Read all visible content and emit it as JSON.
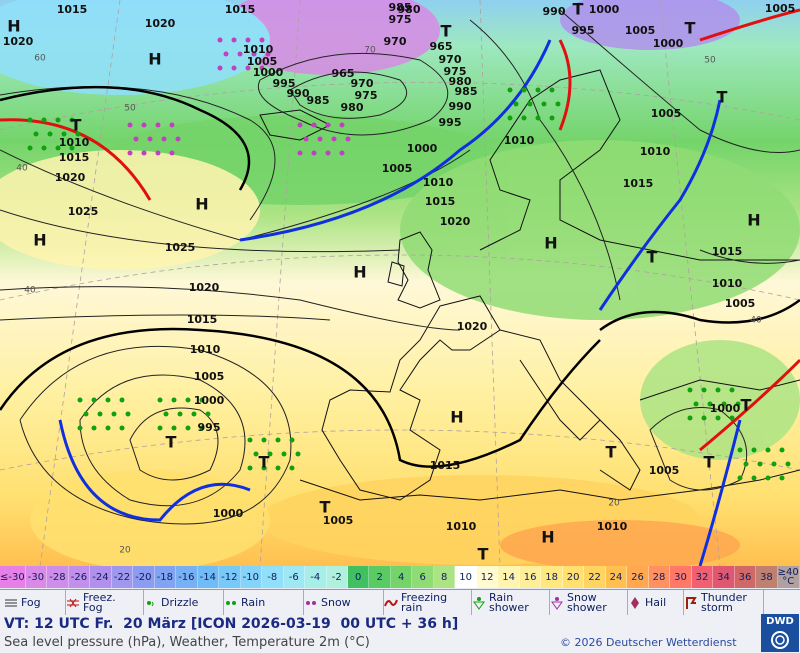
{
  "map": {
    "isobar_labels": [
      1015,
      1020,
      1015,
      1020,
      1010,
      1005,
      1000,
      995,
      990,
      985,
      980,
      975,
      970,
      965,
      975,
      985,
      970,
      965,
      970,
      975,
      980,
      985,
      990,
      995,
      1000,
      1005,
      1010,
      1015,
      1020,
      980,
      990,
      995,
      1000,
      1005,
      1000,
      1005,
      1010,
      1005,
      1010,
      1015,
      1015,
      1010,
      1005,
      1010,
      1015,
      1020,
      1025,
      1025,
      1020,
      1015,
      1010,
      1005,
      1000,
      995,
      1000,
      1005,
      1010,
      1015,
      1020,
      1005,
      1000,
      1010
    ],
    "high_labels": [
      "H",
      "H",
      "H",
      "H",
      "H",
      "H",
      "H",
      "H",
      "H"
    ],
    "low_labels": [
      "T",
      "T",
      "T",
      "T",
      "T",
      "T",
      "T",
      "T",
      "T",
      "T",
      "T",
      "T",
      "T"
    ],
    "latitude_labels": [
      60,
      50,
      40,
      40,
      20,
      20,
      40,
      50,
      70
    ]
  },
  "temperature_scale": {
    "labels": [
      "≤-30",
      "-30",
      "-28",
      "-26",
      "-24",
      "-22",
      "-20",
      "-18",
      "-16",
      "-14",
      "-12",
      "-10",
      "-8",
      "-6",
      "-4",
      "-2",
      "0",
      "2",
      "4",
      "6",
      "8",
      "10",
      "12",
      "14",
      "16",
      "18",
      "20",
      "22",
      "24",
      "26",
      "28",
      "30",
      "32",
      "34",
      "36",
      "38",
      "≥40 °C"
    ],
    "colors": [
      "#e680e6",
      "#d98ae6",
      "#cc8ee8",
      "#c090ea",
      "#b090ec",
      "#a098ee",
      "#8c9cf0",
      "#80a4f2",
      "#78b0f4",
      "#70bcf6",
      "#78c8f8",
      "#84d4fa",
      "#90e0fc",
      "#9ee8f4",
      "#a8eee8",
      "#b0f0dc",
      "#40c060",
      "#5acb62",
      "#74d46a",
      "#90dc74",
      "#ace484",
      "#ffffff",
      "#fffad0",
      "#fff4b0",
      "#ffee98",
      "#ffe880",
      "#ffe070",
      "#ffd460",
      "#ffc050",
      "#ffa850",
      "#ff9060",
      "#ff7868",
      "#f06070",
      "#e05870",
      "#d06868",
      "#c08070",
      "#b0a0a0"
    ]
  },
  "weather_legend": [
    "Fog",
    "Freez. Fog",
    "Drizzle",
    "Rain",
    "Snow",
    "Freezing rain",
    "Rain shower",
    "Snow shower",
    "Hail",
    "Thunder storm"
  ],
  "footer": {
    "valid_time": "VT: 12 UTC Fr.  20 März [ICON 2026-03-19  00 UTC + 36 h]",
    "description": "Sea level pressure (hPa), Weather, Temperature 2m (°C)",
    "copyright": "© 2026 Deutscher Wetterdienst",
    "logo": "DWD"
  }
}
